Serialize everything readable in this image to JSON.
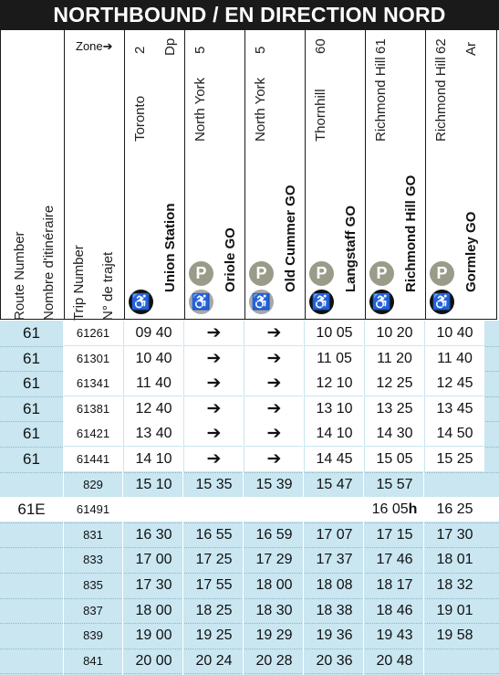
{
  "title": "NORTHBOUND / EN DIRECTION NORD",
  "zone_label": "Zone",
  "zone_arrow": "➔",
  "columns": {
    "route_en": "Route Number",
    "route_fr": "Nombre d'itinéraire",
    "trip_en": "Trip Number",
    "trip_fr": "N° de trajet"
  },
  "stops": [
    {
      "city": "Toronto",
      "zone": "2",
      "code": "Dp",
      "name": "Union Station",
      "parking": false,
      "accessible": "black"
    },
    {
      "city": "North York",
      "zone": "5",
      "code": "",
      "name": "Oriole GO",
      "parking": true,
      "accessible": "grey"
    },
    {
      "city": "North York",
      "zone": "5",
      "code": "",
      "name": "Old Cummer GO",
      "parking": true,
      "accessible": "grey"
    },
    {
      "city": "Thornhill",
      "zone": "60",
      "code": "",
      "name": "Langstaff GO",
      "parking": true,
      "accessible": "black"
    },
    {
      "city": "Richmond Hill",
      "zone": "61",
      "code": "",
      "name": "Richmond Hill GO",
      "parking": true,
      "accessible": "black"
    },
    {
      "city": "Richmond Hill",
      "zone": "62",
      "code": "Ar",
      "name": "Gormley GO",
      "parking": true,
      "accessible": "black"
    }
  ],
  "icons": {
    "wheelchair": "wheelchair-icon",
    "parking": "parking-icon",
    "parking_letter": "P",
    "wheelchair_glyph": "♿"
  },
  "colors": {
    "banner": "#1a1a1a",
    "row_bg": "#c9e6f1",
    "white": "#ffffff"
  },
  "rows": [
    {
      "route": "61",
      "trip": "61261",
      "times": [
        "09 40",
        "➔",
        "➔",
        "10 05",
        "10 20",
        "10 40"
      ],
      "white_trip": true
    },
    {
      "route": "61",
      "trip": "61301",
      "times": [
        "10 40",
        "➔",
        "➔",
        "11 05",
        "11 20",
        "11 40"
      ],
      "white_trip": true
    },
    {
      "route": "61",
      "trip": "61341",
      "times": [
        "11 40",
        "➔",
        "➔",
        "12 10",
        "12 25",
        "12 45"
      ],
      "white_trip": true
    },
    {
      "route": "61",
      "trip": "61381",
      "times": [
        "12 40",
        "➔",
        "➔",
        "13 10",
        "13 25",
        "13 45"
      ],
      "white_trip": true
    },
    {
      "route": "61",
      "trip": "61421",
      "times": [
        "13 40",
        "➔",
        "➔",
        "14 10",
        "14 30",
        "14 50"
      ],
      "white_trip": true
    },
    {
      "route": "61",
      "trip": "61441",
      "times": [
        "14 10",
        "➔",
        "➔",
        "14 45",
        "15 05",
        "15 25"
      ],
      "white_trip": true
    },
    {
      "route": "",
      "trip": "829",
      "times": [
        "15 10",
        "15 35",
        "15 39",
        "15 47",
        "15 57",
        ""
      ],
      "white_trip": false
    },
    {
      "route": "61E",
      "trip": "61491",
      "times": [
        "",
        "",
        "",
        "",
        "16 05",
        "16 25"
      ],
      "white_trip": true,
      "white_row": true,
      "suffix": "h"
    },
    {
      "route": "",
      "trip": "831",
      "times": [
        "16 30",
        "16 55",
        "16 59",
        "17 07",
        "17 15",
        "17 30"
      ],
      "white_trip": false
    },
    {
      "route": "",
      "trip": "833",
      "times": [
        "17 00",
        "17 25",
        "17 29",
        "17 37",
        "17 46",
        "18 01"
      ],
      "white_trip": false
    },
    {
      "route": "",
      "trip": "835",
      "times": [
        "17 30",
        "17 55",
        "18 00",
        "18 08",
        "18 17",
        "18 32"
      ],
      "white_trip": false
    },
    {
      "route": "",
      "trip": "837",
      "times": [
        "18 00",
        "18 25",
        "18 30",
        "18 38",
        "18 46",
        "19 01"
      ],
      "white_trip": false
    },
    {
      "route": "",
      "trip": "839",
      "times": [
        "19 00",
        "19 25",
        "19 29",
        "19 36",
        "19 43",
        "19 58"
      ],
      "white_trip": false
    },
    {
      "route": "",
      "trip": "841",
      "times": [
        "20 00",
        "20 24",
        "20 28",
        "20 36",
        "20 48",
        ""
      ],
      "white_trip": false
    }
  ]
}
